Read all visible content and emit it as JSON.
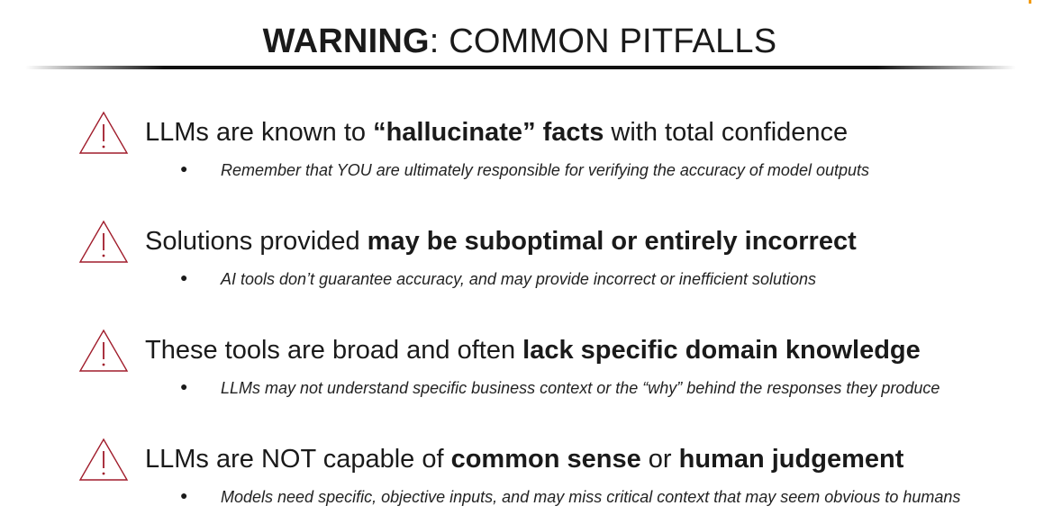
{
  "title": {
    "bold": "WARNING",
    "rest": ": COMMON PITFALLS"
  },
  "colors": {
    "warning_icon": "#a01c2b",
    "corner_accent": "#f39c12"
  },
  "items": [
    {
      "icon": "warning-triangle-icon",
      "heading_parts": [
        "LLMs are known to ",
        "“hallucinate” facts",
        " with total confidence",
        "",
        ""
      ],
      "sub": "Remember that YOU are ultimately responsible for verifying the accuracy of model outputs"
    },
    {
      "icon": "warning-triangle-icon",
      "heading_parts": [
        "Solutions provided ",
        "may be suboptimal or entirely incorrect",
        "",
        "",
        ""
      ],
      "sub": "AI tools don’t guarantee accuracy, and may provide incorrect or inefficient solutions"
    },
    {
      "icon": "warning-triangle-icon",
      "heading_parts": [
        "These tools are broad and often ",
        "lack specific domain knowledge",
        "",
        "",
        ""
      ],
      "sub": "LLMs may not understand specific business context or the “why” behind the responses they produce"
    },
    {
      "icon": "warning-triangle-icon",
      "heading_parts": [
        "LLMs are NOT capable of ",
        "common sense",
        " or ",
        "human judgement",
        ""
      ],
      "sub": "Models need specific, objective inputs, and may miss critical context that may seem obvious to humans"
    }
  ]
}
